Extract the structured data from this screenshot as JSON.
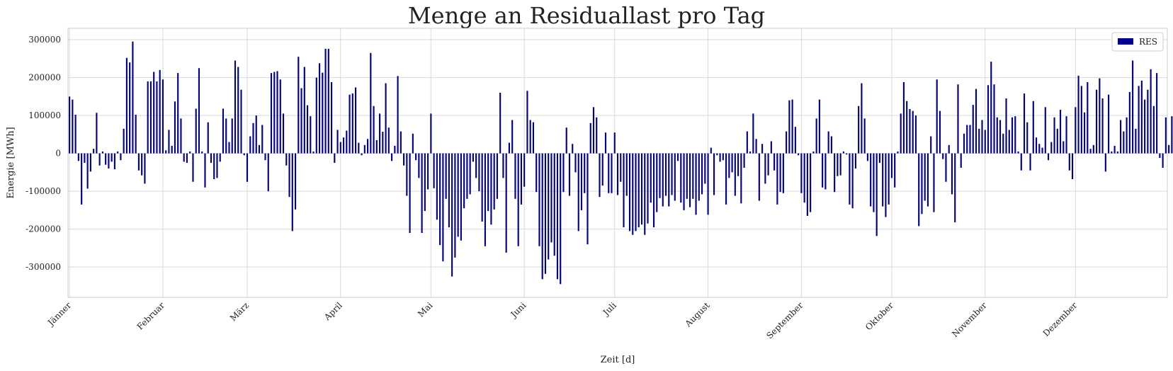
{
  "chart_data": {
    "type": "bar",
    "title": "Menge an Residuallast pro Tag",
    "xlabel": "Zeit [d]",
    "ylabel": "Energie [MWh]",
    "ylim": [
      -380000,
      330000
    ],
    "yticks": [
      -300000,
      -200000,
      -100000,
      0,
      100000,
      200000,
      300000
    ],
    "month_labels": [
      "Jänner",
      "Februar",
      "März",
      "April",
      "Mai",
      "Juni",
      "Juli",
      "August",
      "September",
      "Oktober",
      "November",
      "Dezember"
    ],
    "month_start_day": [
      1,
      32,
      60,
      91,
      121,
      152,
      182,
      213,
      244,
      274,
      305,
      335
    ],
    "days_in_year": 365,
    "grid": true,
    "legend_position": "top-right",
    "series": [
      {
        "name": "RES",
        "color": "#00008b",
        "values": [
          150000,
          142000,
          102000,
          -20000,
          -135000,
          -25000,
          -93000,
          -48000,
          12000,
          107000,
          -32000,
          5000,
          -30000,
          -40000,
          -22000,
          -42000,
          5000,
          -18000,
          65000,
          252000,
          240000,
          295000,
          102000,
          -45000,
          -58000,
          -80000,
          190000,
          190000,
          215000,
          190000,
          220000,
          195000,
          8000,
          62000,
          20000,
          137000,
          212000,
          92000,
          -22000,
          -25000,
          5000,
          -75000,
          118000,
          225000,
          5000,
          -90000,
          82000,
          -25000,
          -68000,
          -65000,
          -22000,
          118000,
          92000,
          30000,
          92000,
          245000,
          228000,
          168000,
          -5000,
          -75000,
          45000,
          80000,
          100000,
          22000,
          75000,
          -18000,
          -100000,
          212000,
          215000,
          217000,
          195000,
          105000,
          -32000,
          -115000,
          -205000,
          -148000,
          255000,
          172000,
          228000,
          127000,
          98000,
          5000,
          200000,
          238000,
          213000,
          276000,
          276000,
          188000,
          -25000,
          62000,
          30000,
          42000,
          60000,
          155000,
          158000,
          174000,
          28000,
          -5000,
          22000,
          38000,
          265000,
          125000,
          35000,
          105000,
          57000,
          185000,
          68000,
          -20000,
          20000,
          204000,
          58000,
          -32000,
          -112000,
          -210000,
          52000,
          -18000,
          -65000,
          -210000,
          -152000,
          -95000,
          105000,
          -92000,
          -175000,
          -242000,
          -285000,
          -120000,
          -195000,
          -325000,
          -275000,
          -220000,
          -230000,
          -145000,
          -120000,
          -108000,
          -22000,
          -65000,
          -100000,
          -180000,
          -245000,
          -152000,
          -188000,
          -148000,
          -120000,
          160000,
          -65000,
          -262000,
          28000,
          88000,
          -120000,
          -245000,
          -135000,
          -88000,
          165000,
          88000,
          82000,
          -102000,
          -245000,
          -332000,
          -318000,
          -280000,
          -235000,
          -270000,
          -332000,
          -345000,
          -102000,
          68000,
          -112000,
          25000,
          -50000,
          -205000,
          -150000,
          -105000,
          -240000,
          80000,
          122000,
          95000,
          -115000,
          -85000,
          55000,
          -105000,
          -105000,
          55000,
          -110000,
          -75000,
          -195000,
          -112000,
          -205000,
          -215000,
          -205000,
          -195000,
          -188000,
          -215000,
          -185000,
          -130000,
          -195000,
          -155000,
          -118000,
          -140000,
          -112000,
          -140000,
          -110000,
          -125000,
          -20000,
          -130000,
          -150000,
          -120000,
          -142000,
          -120000,
          -162000,
          -125000,
          -108000,
          -80000,
          -162000,
          15000,
          -110000,
          -5000,
          -22000,
          -18000,
          -135000,
          -65000,
          -50000,
          -112000,
          -60000,
          -132000,
          -38000,
          58000,
          5000,
          105000,
          38000,
          -125000,
          25000,
          -80000,
          -58000,
          32000,
          -45000,
          -135000,
          -102000,
          -105000,
          58000,
          140000,
          142000,
          70000,
          -5000,
          -105000,
          -130000,
          -165000,
          -155000,
          5000,
          92000,
          142000,
          -90000,
          -95000,
          58000,
          45000,
          -102000,
          -60000,
          -58000,
          5000,
          -3000,
          -135000,
          -145000,
          -40000,
          125000,
          185000,
          92000,
          -20000,
          -140000,
          -155000,
          -218000,
          -25000,
          -140000,
          -168000,
          -135000,
          -65000,
          -90000,
          5000,
          105000,
          188000,
          138000,
          117000,
          112000,
          100000,
          -192000,
          -160000,
          -125000,
          -140000,
          45000,
          -155000,
          195000,
          112000,
          -15000,
          -75000,
          22000,
          -108000,
          -182000,
          182000,
          -38000,
          52000,
          75000,
          75000,
          128000,
          170000,
          65000,
          88000,
          62000,
          180000,
          242000,
          182000,
          95000,
          88000,
          52000,
          145000,
          62000,
          95000,
          98000,
          5000,
          -45000,
          158000,
          82000,
          -45000,
          138000,
          42000,
          25000,
          15000,
          122000,
          -18000,
          30000,
          95000,
          65000,
          115000,
          32000,
          98000,
          -45000,
          -68000,
          122000,
          205000,
          178000,
          108000,
          188000,
          12000,
          22000,
          168000,
          198000,
          145000,
          -48000,
          155000,
          5000,
          20000,
          5000,
          88000,
          58000,
          95000,
          162000,
          245000,
          65000,
          178000,
          192000,
          142000,
          168000,
          222000,
          125000,
          212000,
          -12000,
          -38000,
          95000,
          22000,
          98000,
          128000,
          122000
        ]
      }
    ]
  }
}
